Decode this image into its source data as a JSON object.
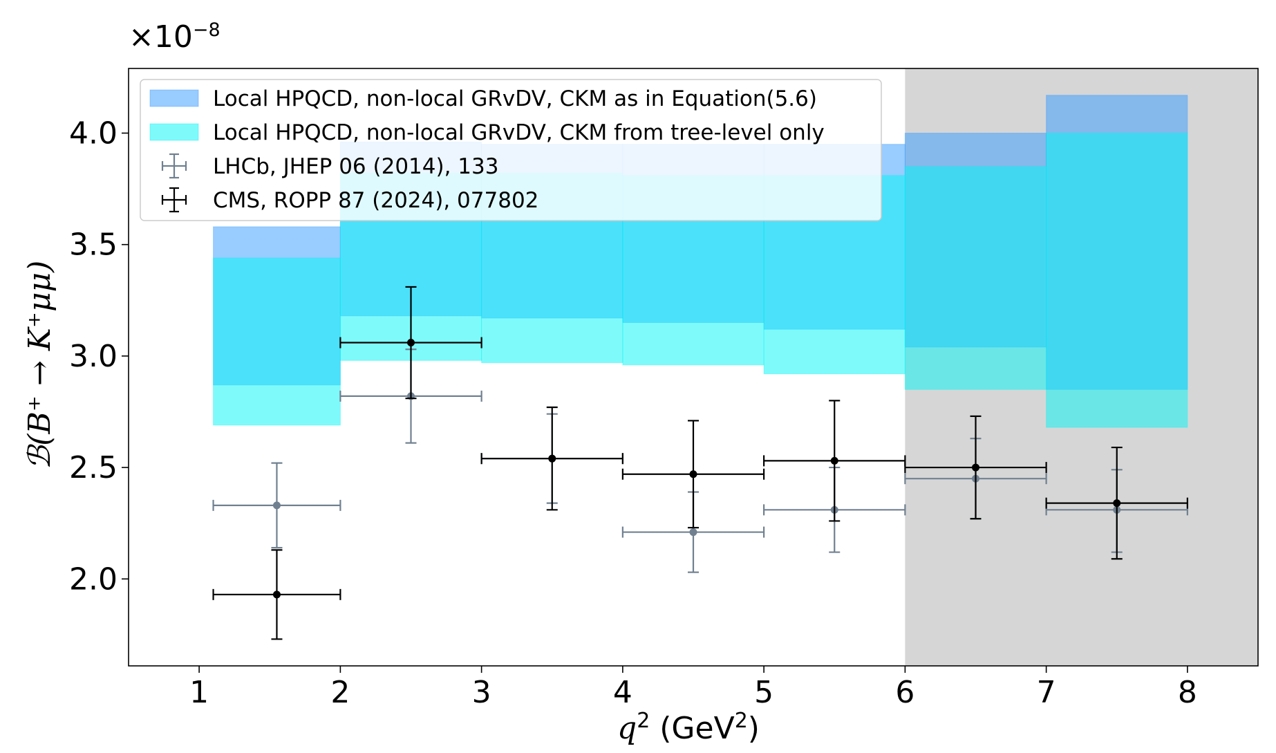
{
  "chart_data": {
    "type": "band+errorbar",
    "xlabel_main": "q",
    "xlabel_sup": "2",
    "xlabel_unit_open": " (GeV",
    "xlabel_unit_sup": "2",
    "xlabel_unit_close": ")",
    "ylabel": "ℬ(B⁺ → K⁺μμ)",
    "y_offset_base": "×10",
    "y_offset_exp": "−8",
    "xlim": [
      0.5,
      8.5
    ],
    "ylim": [
      1.61,
      4.29
    ],
    "x_ticks": [
      1,
      2,
      3,
      4,
      5,
      6,
      7,
      8
    ],
    "x_tick_labels": [
      "1",
      "2",
      "3",
      "4",
      "5",
      "6",
      "7",
      "8"
    ],
    "y_ticks": [
      2.0,
      2.5,
      3.0,
      3.5,
      4.0
    ],
    "y_tick_labels": [
      "2.0",
      "2.5",
      "3.0",
      "3.5",
      "4.0"
    ],
    "shaded_region": {
      "x_from": 6,
      "x_to": 8.5,
      "color": "#d6d6d6"
    },
    "bands": [
      {
        "name": "Local HPQCD, non-local GRvDV, CKM as in Equation(5.6)",
        "color": "#3399ff",
        "bins": [
          {
            "x0": 1.1,
            "x1": 2,
            "lo": 2.87,
            "hi": 3.58
          },
          {
            "x0": 2,
            "x1": 3,
            "lo": 3.18,
            "hi": 3.96
          },
          {
            "x0": 3,
            "x1": 4,
            "lo": 3.17,
            "hi": 3.95
          },
          {
            "x0": 4,
            "x1": 5,
            "lo": 3.15,
            "hi": 3.95
          },
          {
            "x0": 5,
            "x1": 6,
            "lo": 3.12,
            "hi": 3.95
          },
          {
            "x0": 6,
            "x1": 7,
            "lo": 3.04,
            "hi": 4.0
          },
          {
            "x0": 7,
            "x1": 8,
            "lo": 2.85,
            "hi": 4.17
          }
        ]
      },
      {
        "name": "Local HPQCD, non-local GRvDV, CKM from tree-level only",
        "color": "#00f5f5",
        "bins": [
          {
            "x0": 1.1,
            "x1": 2,
            "lo": 2.69,
            "hi": 3.44
          },
          {
            "x0": 2,
            "x1": 3,
            "lo": 2.98,
            "hi": 3.82
          },
          {
            "x0": 3,
            "x1": 4,
            "lo": 2.97,
            "hi": 3.82
          },
          {
            "x0": 4,
            "x1": 5,
            "lo": 2.96,
            "hi": 3.81
          },
          {
            "x0": 5,
            "x1": 6,
            "lo": 2.92,
            "hi": 3.81
          },
          {
            "x0": 6,
            "x1": 7,
            "lo": 2.85,
            "hi": 3.85
          },
          {
            "x0": 7,
            "x1": 8,
            "lo": 2.68,
            "hi": 4.0
          }
        ]
      }
    ],
    "series": [
      {
        "name": "LHCb, JHEP 06 (2014), 133",
        "color": "#708090",
        "points": [
          {
            "x": 1.55,
            "xlo": 1.1,
            "xhi": 2,
            "y": 2.33,
            "ylo": 2.14,
            "yhi": 2.52
          },
          {
            "x": 2.5,
            "xlo": 2,
            "xhi": 3,
            "y": 2.82,
            "ylo": 2.61,
            "yhi": 3.03
          },
          {
            "x": 3.5,
            "xlo": 3,
            "xhi": 4,
            "y": 2.54,
            "ylo": 2.34,
            "yhi": 2.74
          },
          {
            "x": 4.5,
            "xlo": 4,
            "xhi": 5,
            "y": 2.21,
            "ylo": 2.03,
            "yhi": 2.39
          },
          {
            "x": 5.5,
            "xlo": 5,
            "xhi": 6,
            "y": 2.31,
            "ylo": 2.12,
            "yhi": 2.5
          },
          {
            "x": 6.5,
            "xlo": 6,
            "xhi": 7,
            "y": 2.45,
            "ylo": 2.27,
            "yhi": 2.63
          },
          {
            "x": 7.5,
            "xlo": 7,
            "xhi": 8,
            "y": 2.31,
            "ylo": 2.12,
            "yhi": 2.49
          }
        ]
      },
      {
        "name": "CMS, ROPP 87 (2024), 077802",
        "color": "#000000",
        "points": [
          {
            "x": 1.55,
            "xlo": 1.1,
            "xhi": 2,
            "y": 1.93,
            "ylo": 1.73,
            "yhi": 2.13
          },
          {
            "x": 2.5,
            "xlo": 2,
            "xhi": 3,
            "y": 3.06,
            "ylo": 2.81,
            "yhi": 3.31
          },
          {
            "x": 3.5,
            "xlo": 3,
            "xhi": 4,
            "y": 2.54,
            "ylo": 2.31,
            "yhi": 2.77
          },
          {
            "x": 4.5,
            "xlo": 4,
            "xhi": 5,
            "y": 2.47,
            "ylo": 2.23,
            "yhi": 2.71
          },
          {
            "x": 5.5,
            "xlo": 5,
            "xhi": 6,
            "y": 2.53,
            "ylo": 2.26,
            "yhi": 2.8
          },
          {
            "x": 6.5,
            "xlo": 6,
            "xhi": 7,
            "y": 2.5,
            "ylo": 2.27,
            "yhi": 2.73
          },
          {
            "x": 7.5,
            "xlo": 7,
            "xhi": 8,
            "y": 2.34,
            "ylo": 2.09,
            "yhi": 2.59
          }
        ]
      }
    ],
    "legend": {
      "placement": "top-left",
      "entries": [
        "Local HPQCD, non-local GRvDV, CKM as in Equation(5.6)",
        "Local HPQCD, non-local GRvDV, CKM from tree-level only",
        "LHCb, JHEP 06 (2014), 133",
        "CMS, ROPP 87 (2024), 077802"
      ]
    }
  }
}
